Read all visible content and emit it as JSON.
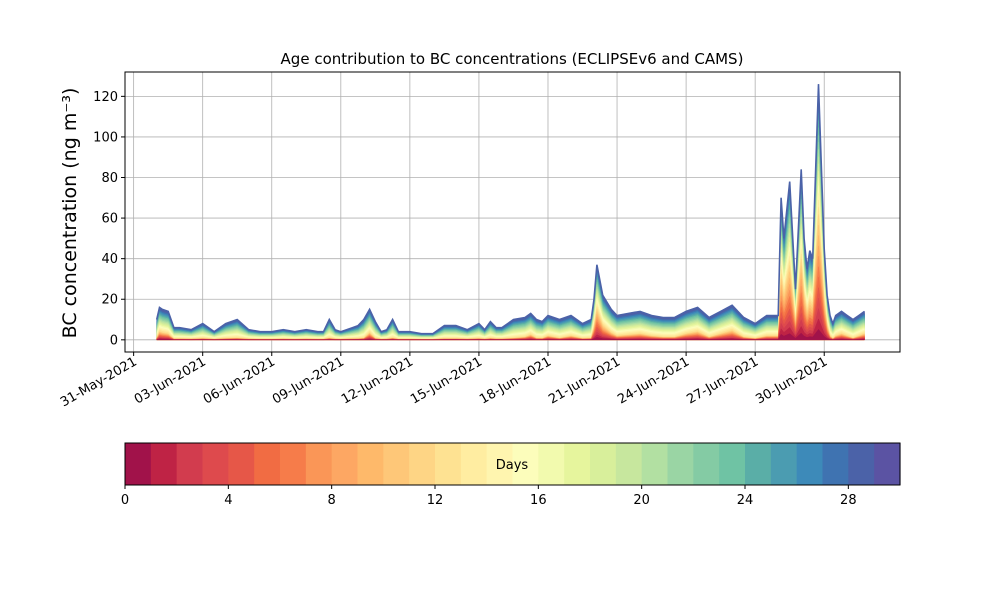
{
  "chart_data": {
    "type": "area",
    "title": "Age contribution to BC concentrations (ECLIPSEv6 and CAMS)",
    "ylabel": "BC concentration (ng m⁻³)",
    "xlabel": "",
    "x_range": [
      "2021-05-30T15:00",
      "2021-07-03T07:00"
    ],
    "ylim": [
      -6,
      132
    ],
    "yticks": [
      0,
      20,
      40,
      60,
      80,
      100,
      120
    ],
    "xticks": [
      "2021-05-31",
      "2021-06-03",
      "2021-06-06",
      "2021-06-09",
      "2021-06-12",
      "2021-06-15",
      "2021-06-18",
      "2021-06-21",
      "2021-06-24",
      "2021-06-27",
      "2021-06-30"
    ],
    "xtick_labels": [
      "31-May-2021",
      "03-Jun-2021",
      "06-Jun-2021",
      "09-Jun-2021",
      "12-Jun-2021",
      "15-Jun-2021",
      "18-Jun-2021",
      "21-Jun-2021",
      "24-Jun-2021",
      "27-Jun-2021",
      "30-Jun-2021"
    ],
    "grid": true,
    "total_series": {
      "x": [
        "2021-06-01T00:00",
        "2021-06-01T03:00",
        "2021-06-01T06:00",
        "2021-06-01T12:00",
        "2021-06-01T18:00",
        "2021-06-02T00:00",
        "2021-06-02T12:00",
        "2021-06-03T00:00",
        "2021-06-03T12:00",
        "2021-06-04T00:00",
        "2021-06-04T12:00",
        "2021-06-05T00:00",
        "2021-06-05T12:00",
        "2021-06-06T00:00",
        "2021-06-06T12:00",
        "2021-06-07T00:00",
        "2021-06-07T12:00",
        "2021-06-08T00:00",
        "2021-06-08T06:00",
        "2021-06-08T12:00",
        "2021-06-08T18:00",
        "2021-06-09T00:00",
        "2021-06-09T12:00",
        "2021-06-09T18:00",
        "2021-06-10T00:00",
        "2021-06-10T06:00",
        "2021-06-10T12:00",
        "2021-06-10T18:00",
        "2021-06-11T00:00",
        "2021-06-11T06:00",
        "2021-06-11T12:00",
        "2021-06-12T00:00",
        "2021-06-12T12:00",
        "2021-06-13T00:00",
        "2021-06-13T12:00",
        "2021-06-14T00:00",
        "2021-06-14T12:00",
        "2021-06-15T00:00",
        "2021-06-15T06:00",
        "2021-06-15T12:00",
        "2021-06-15T18:00",
        "2021-06-16T00:00",
        "2021-06-16T12:00",
        "2021-06-17T00:00",
        "2021-06-17T06:00",
        "2021-06-17T12:00",
        "2021-06-17T18:00",
        "2021-06-18T00:00",
        "2021-06-18T12:00",
        "2021-06-19T00:00",
        "2021-06-19T12:00",
        "2021-06-19T21:00",
        "2021-06-20T00:00",
        "2021-06-20T03:00",
        "2021-06-20T09:00",
        "2021-06-20T18:00",
        "2021-06-21T00:00",
        "2021-06-21T12:00",
        "2021-06-22T00:00",
        "2021-06-22T12:00",
        "2021-06-23T00:00",
        "2021-06-23T12:00",
        "2021-06-24T00:00",
        "2021-06-24T12:00",
        "2021-06-25T00:00",
        "2021-06-25T12:00",
        "2021-06-26T00:00",
        "2021-06-26T12:00",
        "2021-06-27T00:00",
        "2021-06-27T12:00",
        "2021-06-28T00:00",
        "2021-06-28T03:00",
        "2021-06-28T06:00",
        "2021-06-28T12:00",
        "2021-06-28T18:00",
        "2021-06-29T00:00",
        "2021-06-29T03:00",
        "2021-06-29T06:00",
        "2021-06-29T09:00",
        "2021-06-29T12:00",
        "2021-06-29T18:00",
        "2021-06-30T00:00",
        "2021-06-30T03:00",
        "2021-06-30T06:00",
        "2021-06-30T09:00",
        "2021-06-30T12:00",
        "2021-06-30T18:00",
        "2021-07-01T00:00",
        "2021-07-01T06:00",
        "2021-07-01T12:00",
        "2021-07-01T18:00"
      ],
      "values": [
        10,
        16,
        15,
        14,
        6,
        6,
        5,
        8,
        4,
        8,
        10,
        5,
        4,
        4,
        5,
        4,
        5,
        4,
        4,
        10,
        5,
        4,
        6,
        7,
        10,
        15,
        9,
        4,
        5,
        10,
        4,
        4,
        3,
        3,
        7,
        7,
        5,
        8,
        5,
        9,
        6,
        6,
        10,
        11,
        13,
        10,
        9,
        12,
        10,
        12,
        8,
        10,
        20,
        37,
        22,
        15,
        12,
        13,
        14,
        12,
        11,
        11,
        14,
        16,
        11,
        14,
        17,
        11,
        8,
        12,
        12,
        70,
        50,
        78,
        25,
        84,
        50,
        35,
        44,
        40,
        126,
        45,
        22,
        12,
        8,
        12,
        14,
        12,
        10,
        12,
        14
      ]
    },
    "colorbar": {
      "label": "Days",
      "range": [
        0,
        30
      ],
      "ticks": [
        0,
        4,
        8,
        12,
        16,
        20,
        24,
        28
      ],
      "colors": [
        "#a1124a",
        "#bf2345",
        "#d23c4e",
        "#de4a4d",
        "#e65748",
        "#f16c43",
        "#f67c4a",
        "#fa9657",
        "#fda763",
        "#feb96a",
        "#fec778",
        "#fed585",
        "#fee292",
        "#ffeda1",
        "#fff5af",
        "#fcfdbb",
        "#f2faae",
        "#e6f59d",
        "#d8ef9b",
        "#c7e79e",
        "#b2e0a2",
        "#9ad5a4",
        "#84cba4",
        "#6fc3a4",
        "#5aaea7",
        "#4b9cb1",
        "#3d8ab9",
        "#3f73b1",
        "#4b62a8",
        "#5b53a3"
      ]
    }
  }
}
